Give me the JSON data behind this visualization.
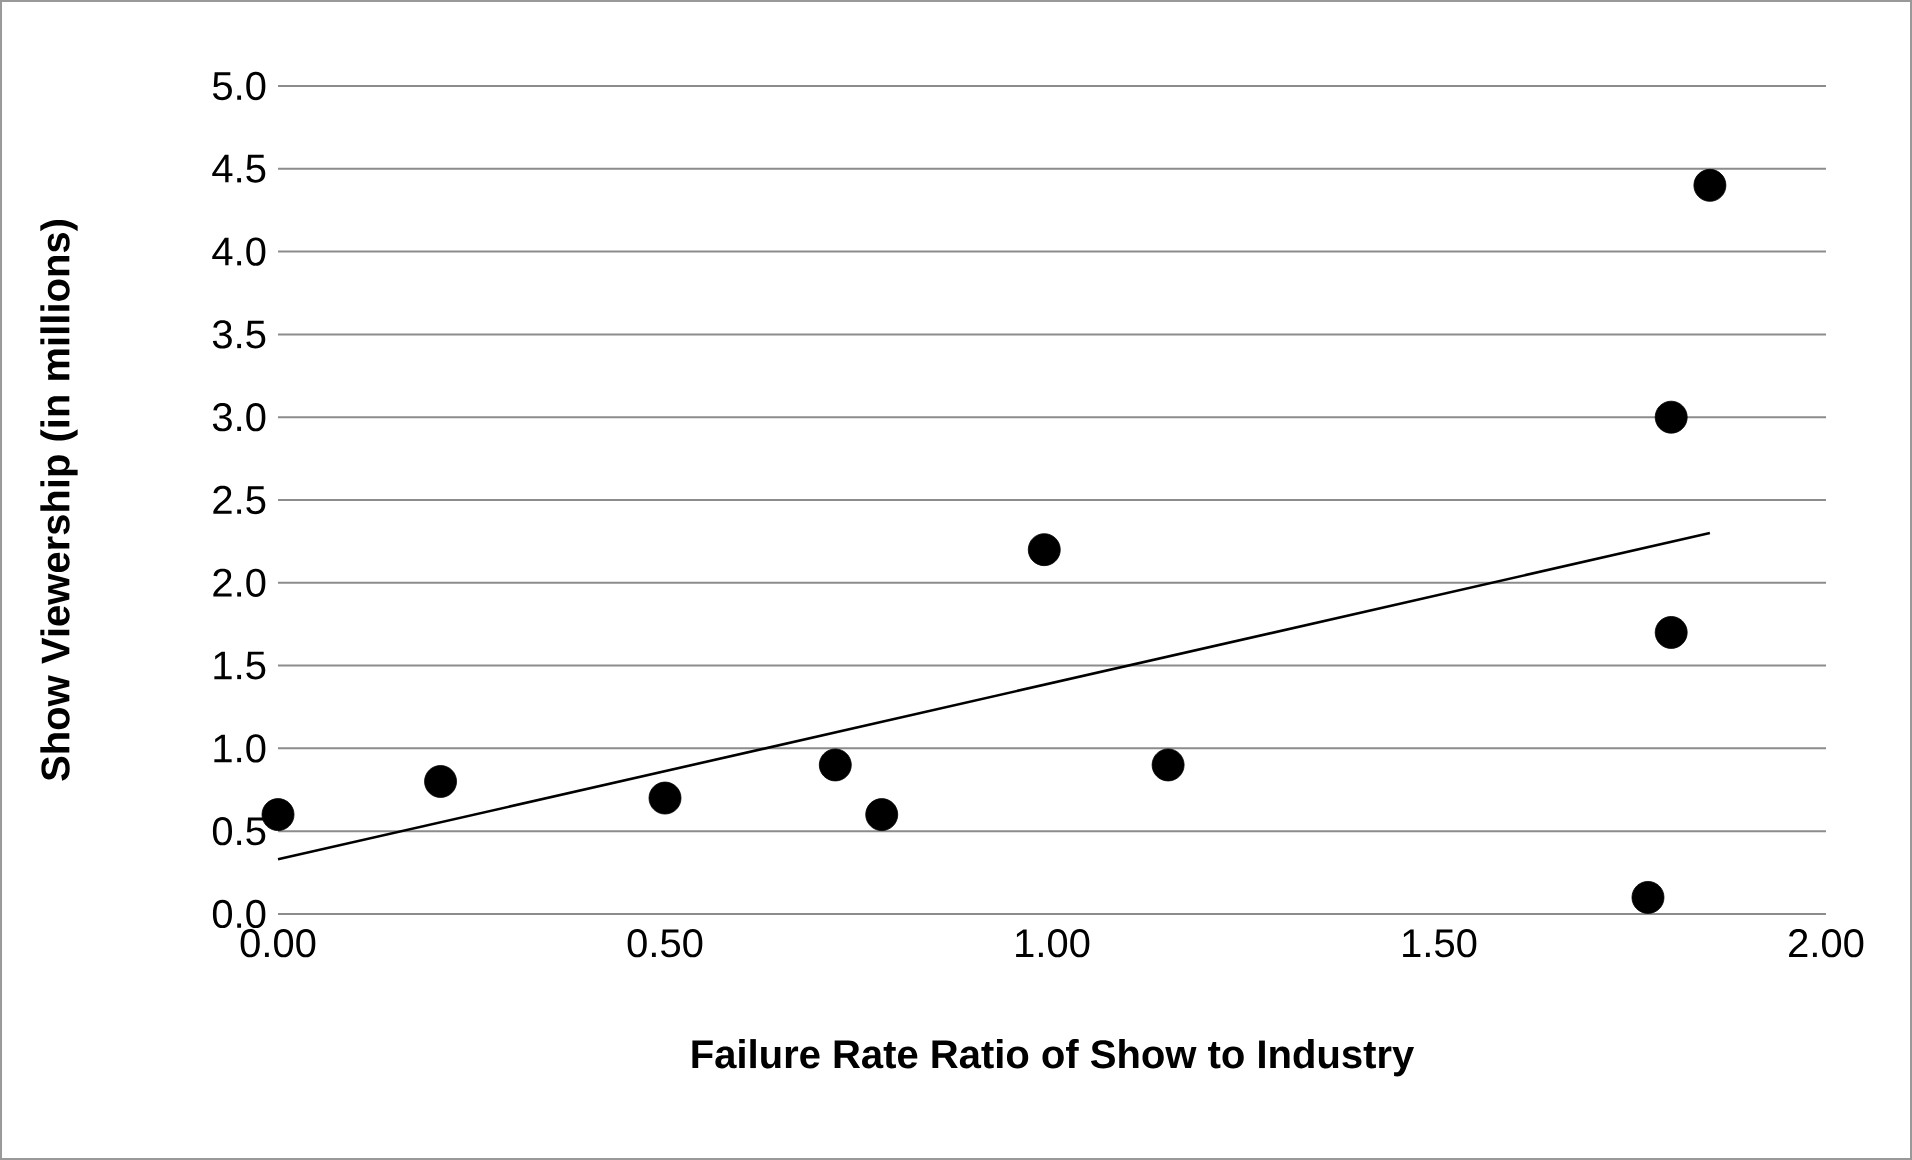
{
  "chart_data": {
    "type": "scatter",
    "xlabel": "Failure Rate Ratio of Show to Industry",
    "ylabel": "Show Viewership (in millions)",
    "series": [
      {
        "color": "#000000",
        "marker": "circle",
        "x": [
          0.0,
          0.21,
          0.5,
          0.72,
          0.78,
          0.99,
          1.15,
          1.77,
          1.8,
          1.8,
          1.85
        ],
        "values": [
          0.6,
          0.8,
          0.7,
          0.9,
          0.6,
          2.2,
          0.9,
          0.1,
          1.7,
          3.0,
          4.4
        ]
      },
      {
        "type": "line",
        "color": "#000000",
        "marker": "none",
        "x": [
          0.0,
          1.85
        ],
        "values": [
          0.33,
          2.3
        ]
      }
    ],
    "xlim": [
      0,
      2
    ],
    "ylim": [
      0,
      5
    ],
    "xticks": [
      {
        "value": 0,
        "label": "0.00"
      },
      {
        "value": 0.5,
        "label": "0.50"
      },
      {
        "value": 1,
        "label": "1.00"
      },
      {
        "value": 1.5,
        "label": "1.50"
      },
      {
        "value": 2,
        "label": "2.00"
      }
    ],
    "yticks": [
      {
        "value": 0,
        "label": "0.0"
      },
      {
        "value": 0.5,
        "label": "0.5"
      },
      {
        "value": 1,
        "label": "1.0"
      },
      {
        "value": 1.5,
        "label": "1.5"
      },
      {
        "value": 2,
        "label": "2.0"
      },
      {
        "value": 2.5,
        "label": "2.5"
      },
      {
        "value": 3,
        "label": "3.0"
      },
      {
        "value": 3.5,
        "label": "3.5"
      },
      {
        "value": 4,
        "label": "4.0"
      },
      {
        "value": 4.5,
        "label": "4.5"
      },
      {
        "value": 5,
        "label": "5.0"
      }
    ],
    "grid": "y"
  }
}
